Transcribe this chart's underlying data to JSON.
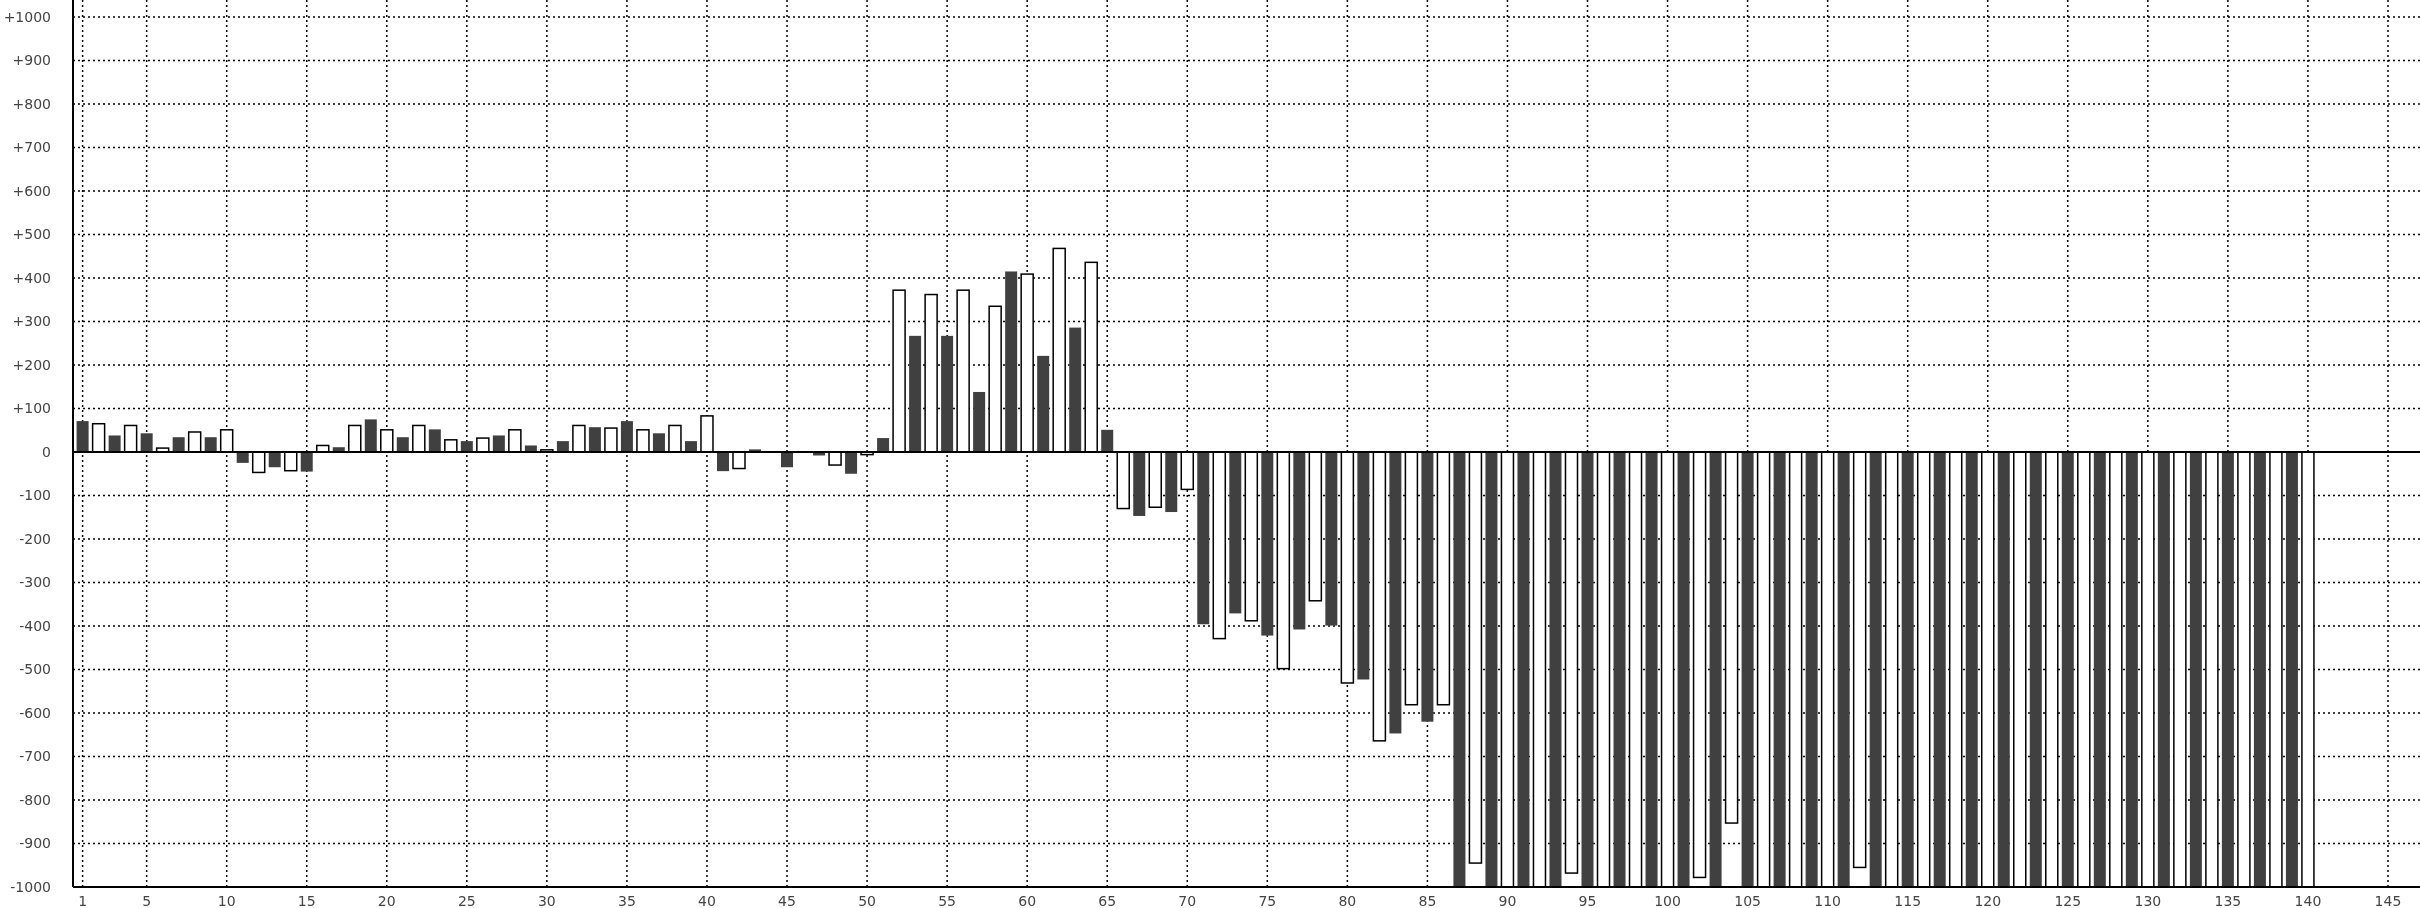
{
  "chart_data": {
    "type": "bar",
    "x": [
      1,
      2,
      3,
      4,
      5,
      6,
      7,
      8,
      9,
      10,
      11,
      12,
      13,
      14,
      15,
      16,
      17,
      18,
      19,
      20,
      21,
      22,
      23,
      24,
      25,
      26,
      27,
      28,
      29,
      30,
      31,
      32,
      33,
      34,
      35,
      36,
      37,
      38,
      39,
      40,
      41,
      42,
      43,
      44,
      45,
      46,
      47,
      48,
      49,
      50,
      51,
      52,
      53,
      54,
      55,
      56,
      57,
      58,
      59,
      60,
      61,
      62,
      63,
      64,
      65,
      66,
      67,
      68,
      69,
      70,
      71,
      72,
      73,
      74,
      75,
      76,
      77,
      78,
      79,
      80,
      81,
      82,
      83,
      84,
      85,
      86,
      87,
      88,
      89,
      90,
      91,
      92,
      93,
      94,
      95,
      96,
      97,
      98,
      99,
      100,
      101,
      102,
      103,
      104,
      105,
      106,
      107,
      108,
      109,
      110,
      111,
      112,
      113,
      114,
      115,
      116,
      117,
      118,
      119,
      120,
      121,
      122,
      123,
      124,
      125,
      126,
      127,
      128,
      129,
      130,
      131,
      132,
      133,
      134,
      135,
      136,
      137,
      138,
      139,
      140
    ],
    "values": [
      71,
      65,
      38,
      61,
      43,
      9,
      34,
      46,
      34,
      51,
      -25,
      -47,
      -35,
      -43,
      -45,
      15,
      11,
      61,
      75,
      51,
      34,
      61,
      52,
      28,
      25,
      32,
      38,
      51,
      15,
      5,
      25,
      61,
      57,
      55,
      71,
      51,
      43,
      61,
      25,
      83,
      -44,
      -38,
      6,
      0,
      -35,
      0,
      -8,
      -30,
      -50,
      -6,
      32,
      372,
      267,
      362,
      267,
      372,
      138,
      335,
      415,
      409,
      221,
      468,
      286,
      436,
      51,
      -130,
      -147,
      -127,
      -138,
      -86,
      -396,
      -429,
      -371,
      -388,
      -422,
      -498,
      -408,
      -342,
      -399,
      -531,
      -523,
      -664,
      -647,
      -581,
      -620,
      -581,
      -1000,
      -945,
      -1000,
      -1000,
      -1000,
      -1000,
      -1000,
      -968,
      -1000,
      -1000,
      -1000,
      -1000,
      -1000,
      -1000,
      -1000,
      -978,
      -1000,
      -853,
      -1000,
      -1000,
      -1000,
      -1000,
      -1000,
      -1000,
      -1000,
      -955,
      -1000,
      -1000,
      -1000,
      -1000,
      -1000,
      -1000,
      -1000,
      -1000,
      -1000,
      -1000,
      -1000,
      -1000,
      -1000,
      -1000,
      -1000,
      -1000,
      -1000,
      -1000,
      -1000,
      -1000,
      -1000,
      -1000,
      -1000,
      -1000,
      -1000,
      -1000,
      -1000,
      -1000
    ],
    "colors": [
      "#404040",
      "#ffffff",
      "#404040",
      "#ffffff",
      "#404040",
      "#ffffff",
      "#404040",
      "#ffffff",
      "#404040",
      "#ffffff",
      "#404040",
      "#ffffff",
      "#404040",
      "#ffffff",
      "#404040",
      "#ffffff",
      "#404040",
      "#ffffff",
      "#404040",
      "#ffffff",
      "#404040",
      "#ffffff",
      "#404040",
      "#ffffff",
      "#404040",
      "#ffffff",
      "#404040",
      "#ffffff",
      "#404040",
      "#ffffff",
      "#404040",
      "#ffffff",
      "#404040",
      "#ffffff",
      "#404040",
      "#ffffff",
      "#404040",
      "#ffffff",
      "#404040",
      "#ffffff",
      "#404040",
      "#ffffff",
      "#404040",
      "#ffffff",
      "#404040",
      "#ffffff",
      "#404040",
      "#ffffff",
      "#404040",
      "#ffffff",
      "#404040",
      "#ffffff",
      "#404040",
      "#ffffff",
      "#404040",
      "#ffffff",
      "#404040",
      "#ffffff",
      "#404040",
      "#ffffff",
      "#404040",
      "#ffffff",
      "#404040",
      "#ffffff",
      "#404040",
      "#ffffff",
      "#404040",
      "#ffffff",
      "#404040",
      "#ffffff",
      "#404040",
      "#ffffff",
      "#404040",
      "#ffffff",
      "#404040",
      "#ffffff",
      "#404040",
      "#ffffff",
      "#404040",
      "#ffffff",
      "#404040",
      "#ffffff",
      "#404040",
      "#ffffff",
      "#404040",
      "#ffffff",
      "#404040",
      "#ffffff",
      "#404040",
      "#ffffff",
      "#404040",
      "#ffffff",
      "#404040",
      "#ffffff",
      "#404040",
      "#ffffff",
      "#404040",
      "#ffffff",
      "#404040",
      "#ffffff",
      "#404040",
      "#ffffff",
      "#404040",
      "#ffffff",
      "#404040",
      "#ffffff",
      "#404040",
      "#ffffff",
      "#404040",
      "#ffffff",
      "#404040",
      "#ffffff",
      "#404040",
      "#ffffff",
      "#404040",
      "#ffffff",
      "#404040",
      "#ffffff",
      "#404040",
      "#ffffff",
      "#404040",
      "#ffffff",
      "#404040",
      "#ffffff",
      "#404040",
      "#ffffff",
      "#404040",
      "#ffffff",
      "#404040",
      "#ffffff",
      "#404040",
      "#ffffff",
      "#404040",
      "#ffffff",
      "#404040",
      "#ffffff",
      "#404040",
      "#ffffff",
      "#404040",
      "#ffffff"
    ],
    "xlim": [
      0.4,
      147
    ],
    "xticks": [
      1,
      5,
      10,
      15,
      20,
      25,
      30,
      35,
      40,
      45,
      50,
      55,
      60,
      65,
      70,
      75,
      80,
      85,
      90,
      95,
      100,
      105,
      110,
      115,
      120,
      125,
      130,
      135,
      140,
      145
    ],
    "ylim": [
      -1000,
      1000
    ],
    "yticks": [
      {
        "value": 1000,
        "label": "+1000"
      },
      {
        "value": 900,
        "label": "+900"
      },
      {
        "value": 800,
        "label": "+800"
      },
      {
        "value": 700,
        "label": "+700"
      },
      {
        "value": 600,
        "label": "+600"
      },
      {
        "value": 500,
        "label": "+500"
      },
      {
        "value": 400,
        "label": "+400"
      },
      {
        "value": 300,
        "label": "+300"
      },
      {
        "value": 200,
        "label": "+200"
      },
      {
        "value": 100,
        "label": "+100"
      },
      0,
      -100,
      -200,
      -300,
      -400,
      -500,
      -600,
      -700,
      -800,
      -900,
      -1000
    ],
    "grid": true
  }
}
